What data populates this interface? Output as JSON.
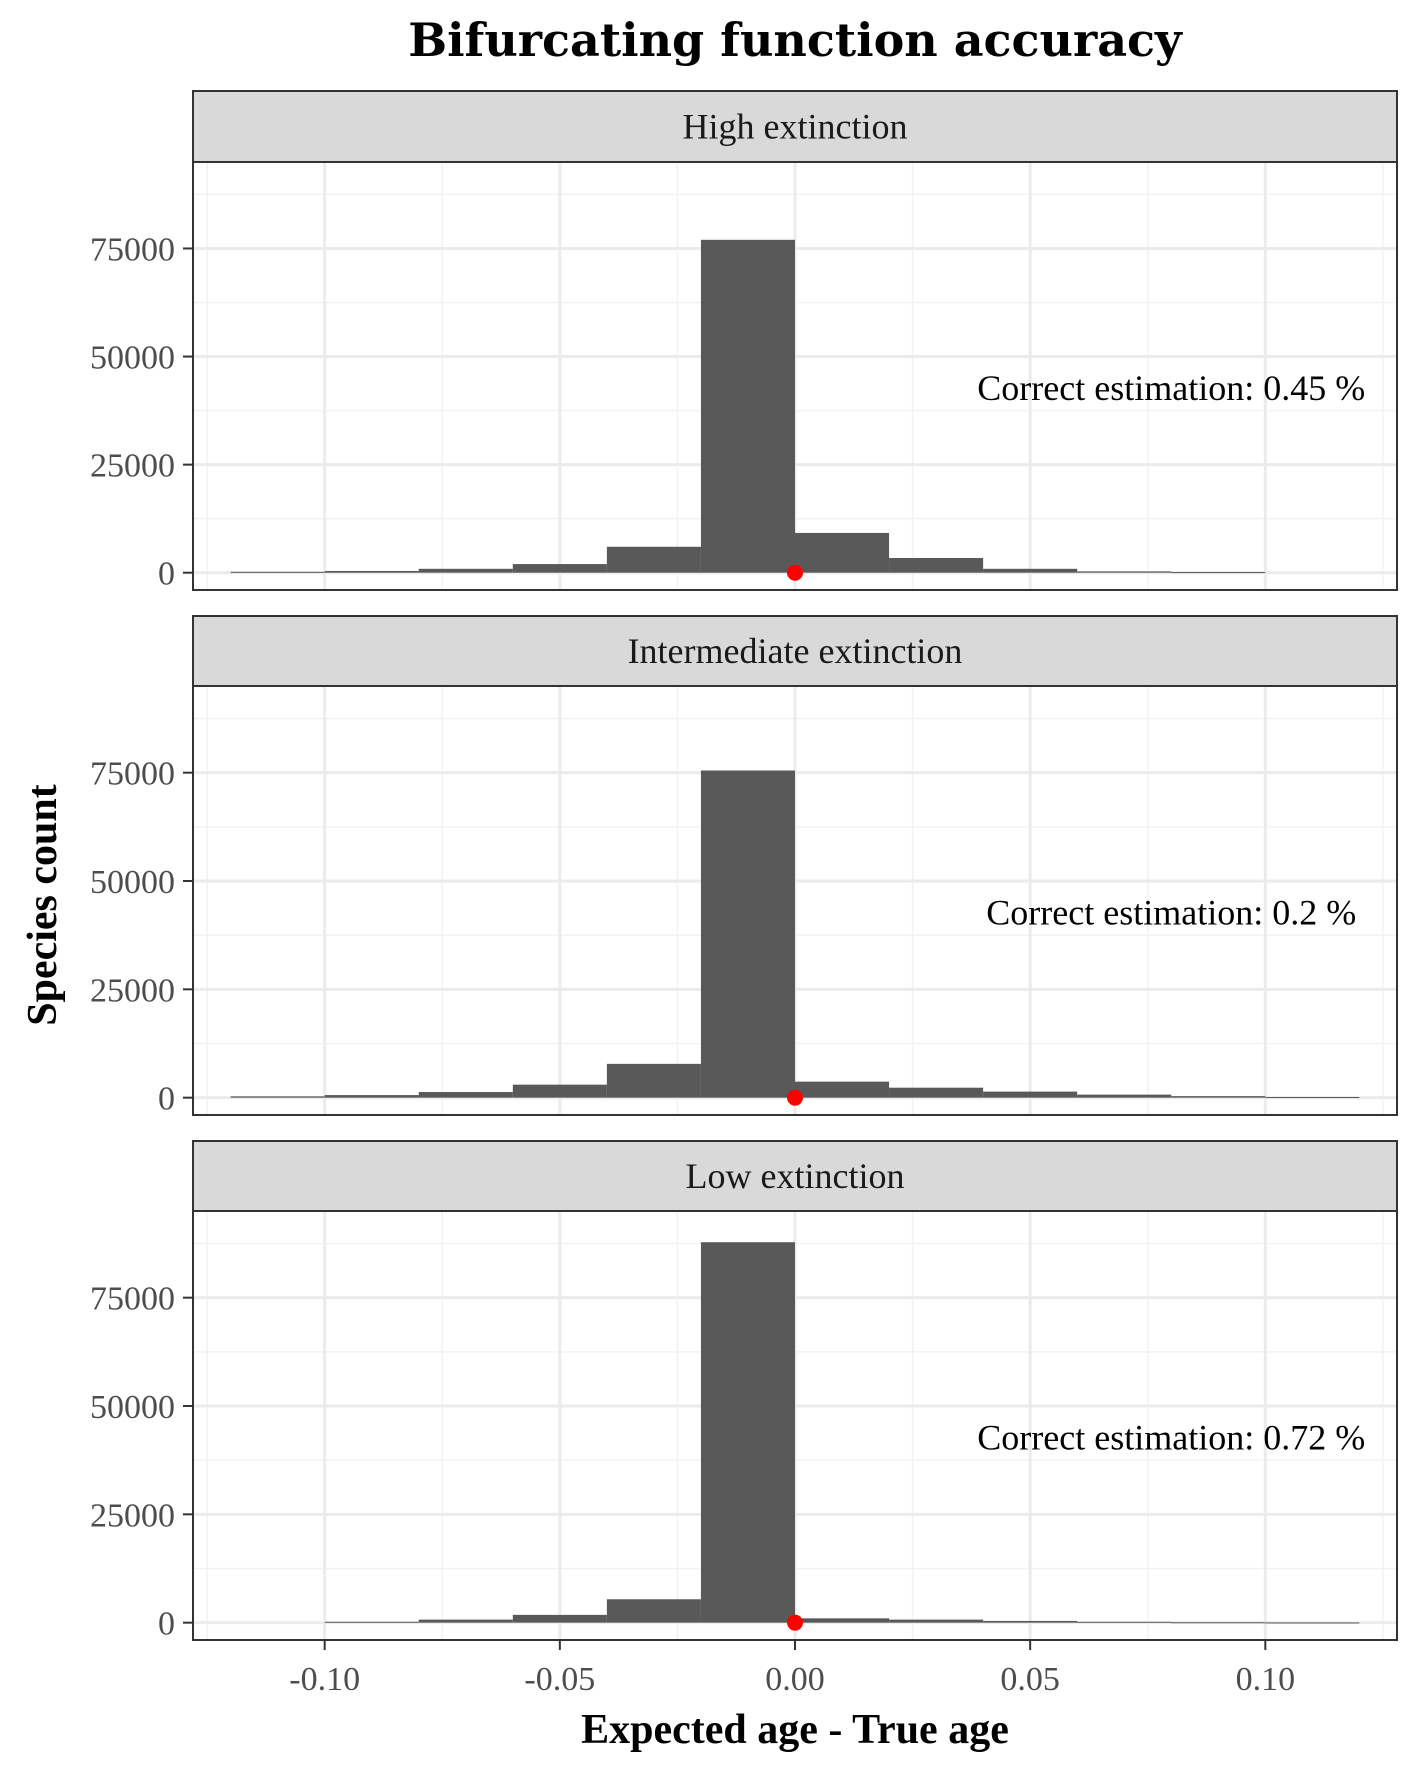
{
  "chart_data": {
    "type": "bar",
    "title": "Bifurcating function accuracy",
    "xlabel": "Expected age - True age",
    "ylabel": "Species count",
    "xlim": [
      -0.128,
      0.128
    ],
    "ylim": [
      -4000,
      95000
    ],
    "x_ticks": [
      -0.1,
      -0.05,
      0.0,
      0.05,
      0.1
    ],
    "x_tick_labels": [
      "-0.10",
      "-0.05",
      "0.00",
      "0.05",
      "0.10"
    ],
    "y_ticks": [
      0,
      25000,
      50000,
      75000
    ],
    "y_tick_labels": [
      "0",
      "25000",
      "50000",
      "75000"
    ],
    "bin_edges": [
      -0.12,
      -0.1,
      -0.08,
      -0.06,
      -0.04,
      -0.02,
      0.0,
      0.02,
      0.04,
      0.06,
      0.08,
      0.1,
      0.12
    ],
    "grid": true,
    "bar_color": "#595959",
    "marker_color": "#ff0000",
    "marker": {
      "x": 0.0,
      "y": 0
    },
    "panels": [
      {
        "strip": "High extinction",
        "annotation": "Correct estimation: 0.45 %",
        "counts": [
          200,
          400,
          900,
          2000,
          6000,
          77000,
          9200,
          3400,
          900,
          300,
          150,
          0
        ]
      },
      {
        "strip": "Intermediate extinction",
        "annotation": "Correct estimation: 0.2 %",
        "counts": [
          300,
          600,
          1300,
          3000,
          7800,
          75500,
          3700,
          2300,
          1400,
          700,
          350,
          150
        ]
      },
      {
        "strip": "Low extinction",
        "annotation": "Correct estimation: 0.72 %",
        "counts": [
          0,
          200,
          700,
          1800,
          5400,
          87800,
          1000,
          700,
          400,
          200,
          100,
          50
        ]
      }
    ]
  }
}
